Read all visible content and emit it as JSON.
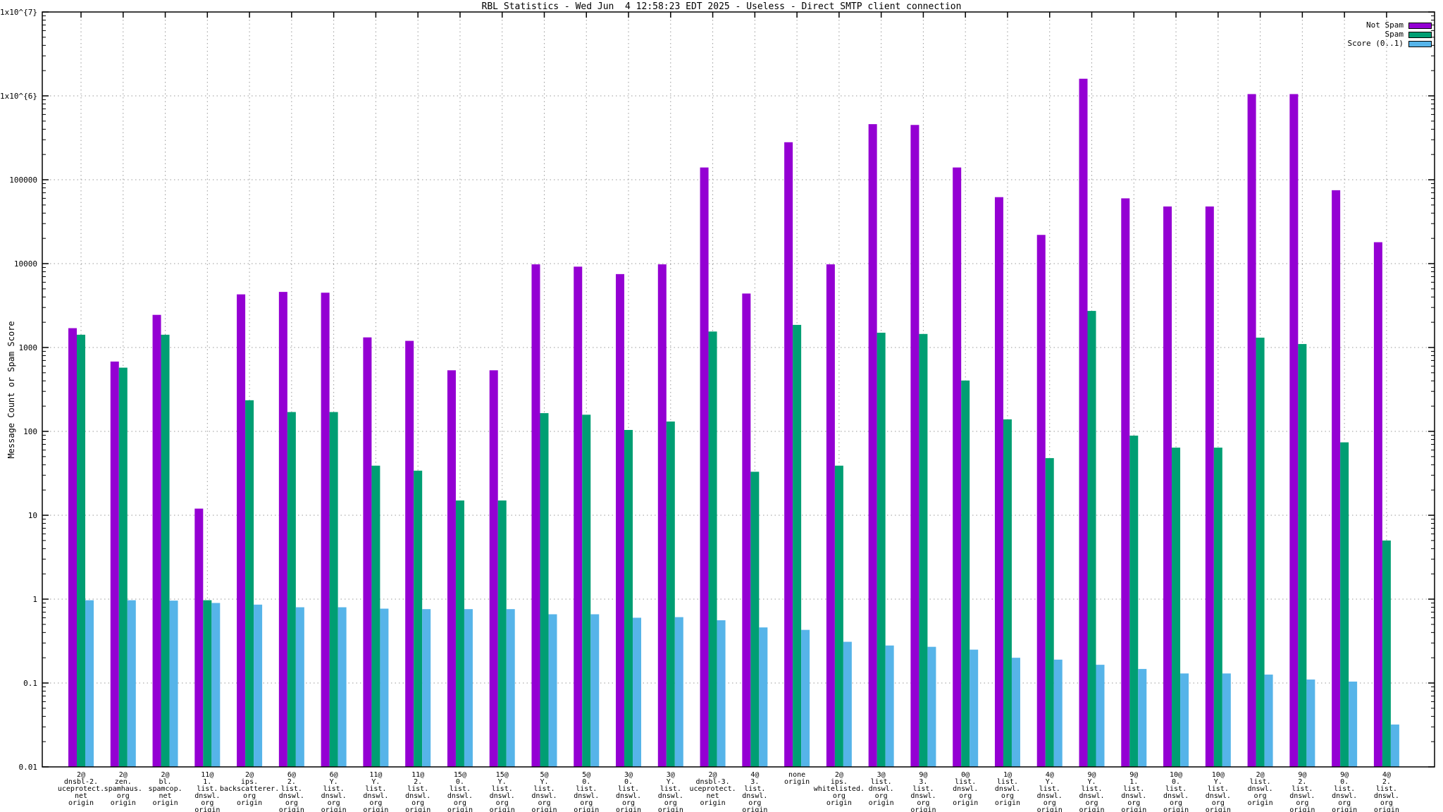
{
  "title": "RBL Statistics - Wed Jun  4 12:58:23 EDT 2025 - Useless - Direct SMTP client connection",
  "ylabel": "Message Count or Spam Score",
  "colors": {
    "not_spam": "#9400d3",
    "spam": "#009e73",
    "score": "#56b4e9",
    "grid": "#9a9a9a",
    "border": "#000000",
    "background": "#ffffff"
  },
  "chart_data": {
    "type": "bar",
    "title": "RBL Statistics - Wed Jun  4 12:58:23 EDT 2025 - Useless - Direct SMTP client connection",
    "xlabel": "",
    "ylabel": "Message Count or Spam Score",
    "y_scale": "log",
    "ylim": [
      0.01,
      10000000
    ],
    "grid": "dotted, both axes",
    "legend_position": "top-right inside",
    "y_ticks": [
      {
        "label": "1x10^{7}",
        "value": 10000000
      },
      {
        "label": "1x10^{6}",
        "value": 1000000
      },
      {
        "label": "100000",
        "value": 100000
      },
      {
        "label": "10000",
        "value": 10000
      },
      {
        "label": "1000",
        "value": 1000
      },
      {
        "label": "100",
        "value": 100
      },
      {
        "label": "10",
        "value": 10
      },
      {
        "label": "1",
        "value": 1
      },
      {
        "label": "0.1",
        "value": 0.1
      },
      {
        "label": "0.01",
        "value": 0.01
      }
    ],
    "categories": [
      {
        "lines": [
          "2@",
          "dnsbl-2.",
          "uceprotect.",
          "net",
          "origin"
        ]
      },
      {
        "lines": [
          "2@",
          "zen.",
          "spamhaus.",
          "org",
          "origin"
        ]
      },
      {
        "lines": [
          "2@",
          "bl.",
          "spamcop.",
          "net",
          "origin"
        ]
      },
      {
        "lines": [
          "11@",
          "1.",
          "list.",
          "dnswl.",
          "org",
          "origin"
        ]
      },
      {
        "lines": [
          "2@",
          "ips.",
          "backscatterer.",
          "org",
          "origin"
        ]
      },
      {
        "lines": [
          "6@",
          "2.",
          "list.",
          "dnswl.",
          "org",
          "origin"
        ]
      },
      {
        "lines": [
          "6@",
          "Y.",
          "list.",
          "dnswl.",
          "org",
          "origin"
        ]
      },
      {
        "lines": [
          "11@",
          "Y.",
          "list.",
          "dnswl.",
          "org",
          "origin"
        ]
      },
      {
        "lines": [
          "11@",
          "2.",
          "list.",
          "dnswl.",
          "org",
          "origin"
        ]
      },
      {
        "lines": [
          "15@",
          "0.",
          "list.",
          "dnswl.",
          "org",
          "origin"
        ]
      },
      {
        "lines": [
          "15@",
          "Y.",
          "list.",
          "dnswl.",
          "org",
          "origin"
        ]
      },
      {
        "lines": [
          "5@",
          "Y.",
          "list.",
          "dnswl.",
          "org",
          "origin"
        ]
      },
      {
        "lines": [
          "5@",
          "0.",
          "list.",
          "dnswl.",
          "org",
          "origin"
        ]
      },
      {
        "lines": [
          "3@",
          "0.",
          "list.",
          "dnswl.",
          "org",
          "origin"
        ]
      },
      {
        "lines": [
          "3@",
          "Y.",
          "list.",
          "dnswl.",
          "org",
          "origin"
        ]
      },
      {
        "lines": [
          "2@",
          "dnsbl-3.",
          "uceprotect.",
          "net",
          "origin"
        ]
      },
      {
        "lines": [
          "4@",
          "3.",
          "list.",
          "dnswl.",
          "org",
          "origin"
        ]
      },
      {
        "lines": [
          "none",
          "origin"
        ]
      },
      {
        "lines": [
          "2@",
          "ips.",
          "whitelisted.",
          "org",
          "origin"
        ]
      },
      {
        "lines": [
          "3@",
          "list.",
          "dnswl.",
          "org",
          "origin"
        ]
      },
      {
        "lines": [
          "9@",
          "3.",
          "list.",
          "dnswl.",
          "org",
          "origin"
        ]
      },
      {
        "lines": [
          "0@",
          "list.",
          "dnswl.",
          "org",
          "origin"
        ]
      },
      {
        "lines": [
          "1@",
          "list.",
          "dnswl.",
          "org",
          "origin"
        ]
      },
      {
        "lines": [
          "4@",
          "Y.",
          "list.",
          "dnswl.",
          "org",
          "origin"
        ]
      },
      {
        "lines": [
          "9@",
          "Y.",
          "list.",
          "dnswl.",
          "org",
          "origin"
        ]
      },
      {
        "lines": [
          "9@",
          "1.",
          "list.",
          "dnswl.",
          "org",
          "origin"
        ]
      },
      {
        "lines": [
          "10@",
          "0.",
          "list.",
          "dnswl.",
          "org",
          "origin"
        ]
      },
      {
        "lines": [
          "10@",
          "Y.",
          "list.",
          "dnswl.",
          "org",
          "origin"
        ]
      },
      {
        "lines": [
          "2@",
          "list.",
          "dnswl.",
          "org",
          "origin"
        ]
      },
      {
        "lines": [
          "9@",
          "2.",
          "list.",
          "dnswl.",
          "org",
          "origin"
        ]
      },
      {
        "lines": [
          "9@",
          "0.",
          "list.",
          "dnswl.",
          "org",
          "origin"
        ]
      },
      {
        "lines": [
          "4@",
          "2.",
          "list.",
          "dnswl.",
          "org",
          "origin"
        ]
      }
    ],
    "series": [
      {
        "name": "Not Spam",
        "color": "#9400d3",
        "values": [
          1700,
          680,
          2450,
          12,
          4300,
          4600,
          4500,
          1320,
          1200,
          535,
          535,
          9800,
          9200,
          7500,
          9800,
          140000,
          4400,
          280000,
          9800,
          460000,
          450000,
          140000,
          62000,
          22000,
          1600000,
          60000,
          48000,
          48000,
          1050000,
          1050000,
          75000,
          18000
        ]
      },
      {
        "name": "Spam",
        "color": "#009e73",
        "values": [
          1420,
          575,
          1420,
          0.97,
          235,
          170,
          170,
          39,
          34,
          15,
          15,
          165,
          158,
          104,
          131,
          1550,
          33,
          1860,
          39,
          1500,
          1450,
          404,
          139,
          48,
          2730,
          89,
          64,
          64,
          1310,
          1100,
          74,
          5
        ]
      },
      {
        "name": "Score (0..1)",
        "color": "#56b4e9",
        "values": [
          0.97,
          0.97,
          0.96,
          0.9,
          0.86,
          0.8,
          0.8,
          0.77,
          0.76,
          0.76,
          0.76,
          0.66,
          0.66,
          0.6,
          0.61,
          0.56,
          0.46,
          0.43,
          0.31,
          0.28,
          0.27,
          0.25,
          0.2,
          0.19,
          0.165,
          0.147,
          0.13,
          0.13,
          0.126,
          0.11,
          0.104,
          0.032
        ]
      }
    ]
  }
}
